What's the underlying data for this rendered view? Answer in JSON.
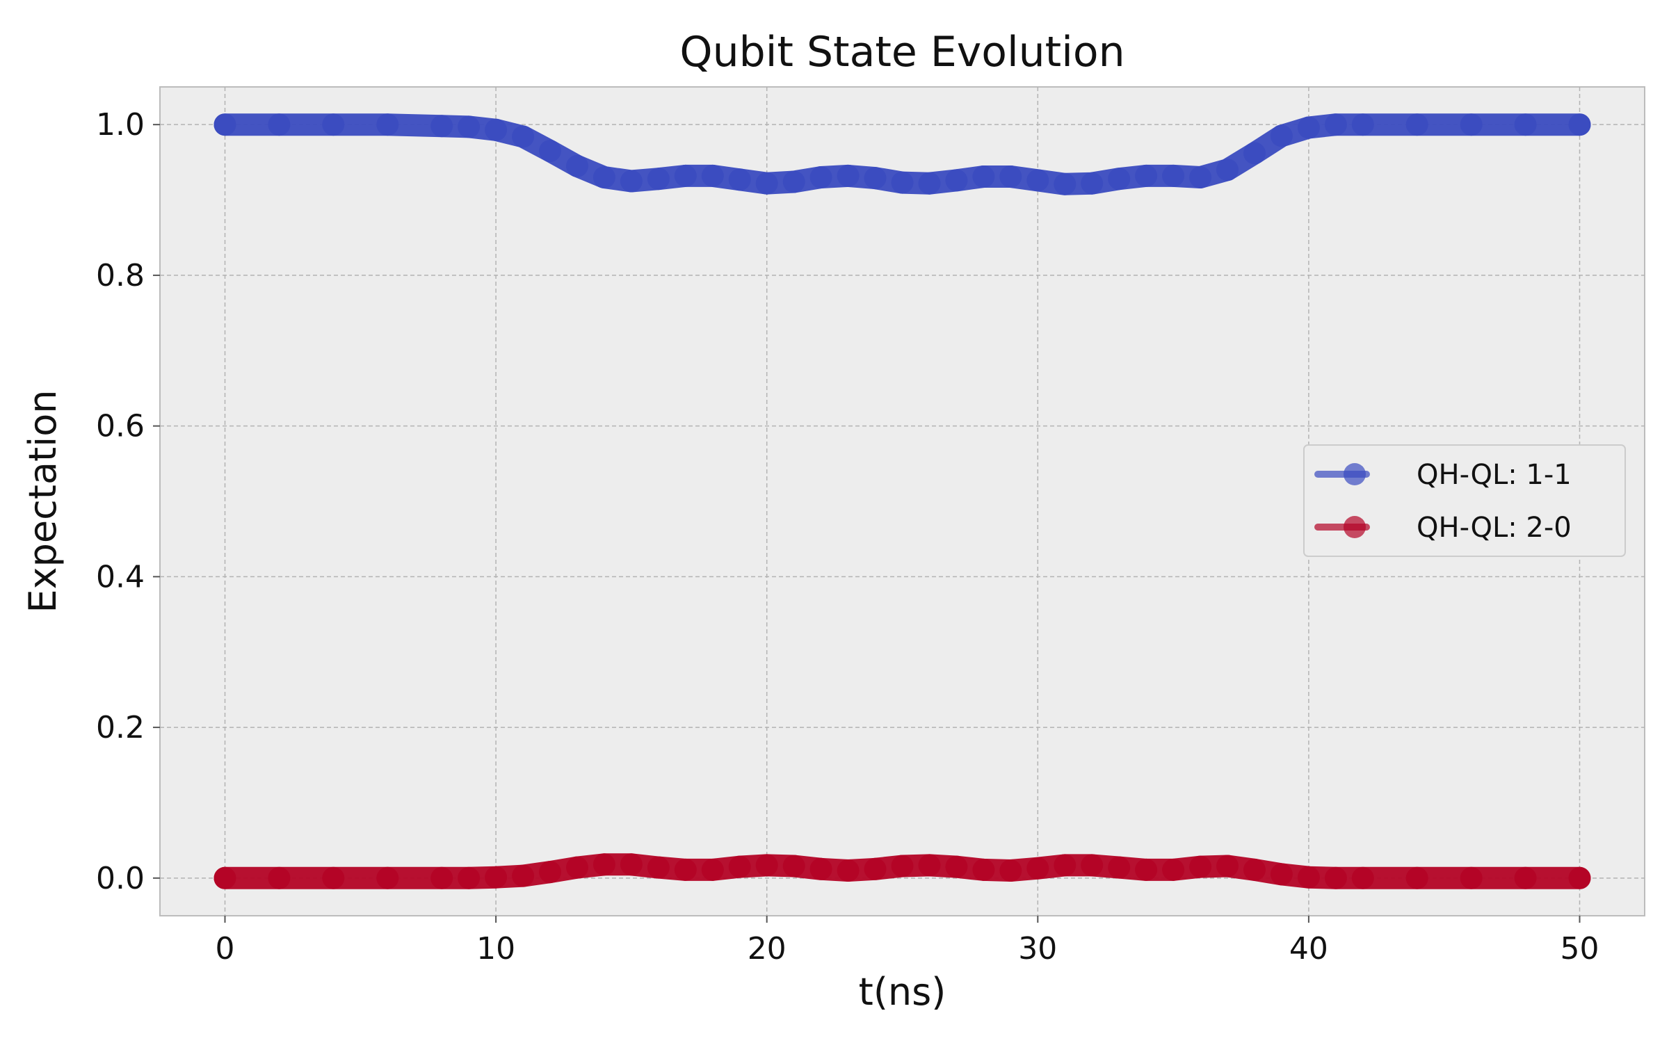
{
  "chart_data": {
    "type": "line",
    "title": "Qubit State Evolution",
    "xlabel": "t(ns)",
    "ylabel": "Expectation",
    "xlim": [
      -2.4,
      52.4
    ],
    "ylim": [
      -0.05,
      1.05
    ],
    "xticks": [
      0,
      10,
      20,
      30,
      40,
      50
    ],
    "yticks": [
      0.0,
      0.2,
      0.4,
      0.6,
      0.8,
      1.0
    ],
    "xtick_labels": [
      "0",
      "10",
      "20",
      "30",
      "40",
      "50"
    ],
    "ytick_labels": [
      "0.0",
      "0.2",
      "0.4",
      "0.6",
      "0.8",
      "1.0"
    ],
    "grid": true,
    "legend_position": "center-right",
    "series": [
      {
        "name": "QH-QL: 1-1",
        "color": "#3b4cc0",
        "x": [
          0,
          2,
          4,
          6,
          8,
          9,
          10,
          11,
          12,
          13,
          14,
          15,
          16,
          17,
          18,
          19,
          20,
          21,
          22,
          23,
          24,
          25,
          26,
          27,
          28,
          29,
          30,
          31,
          32,
          33,
          34,
          35,
          36,
          37,
          38,
          39,
          40,
          41,
          42,
          44,
          46,
          48,
          50
        ],
        "y": [
          1.0,
          1.0,
          1.0,
          1.0,
          0.998,
          0.997,
          0.993,
          0.984,
          0.965,
          0.945,
          0.93,
          0.925,
          0.928,
          0.932,
          0.932,
          0.927,
          0.922,
          0.924,
          0.93,
          0.932,
          0.929,
          0.923,
          0.922,
          0.926,
          0.931,
          0.931,
          0.926,
          0.921,
          0.922,
          0.928,
          0.932,
          0.932,
          0.93,
          0.94,
          0.962,
          0.985,
          0.996,
          1.0,
          1.0,
          1.0,
          1.0,
          1.0,
          1.0
        ]
      },
      {
        "name": "QH-QL: 2-0",
        "color": "#b40426",
        "x": [
          0,
          2,
          4,
          6,
          8,
          9,
          10,
          11,
          12,
          13,
          14,
          15,
          16,
          17,
          18,
          19,
          20,
          21,
          22,
          23,
          24,
          25,
          26,
          27,
          28,
          29,
          30,
          31,
          32,
          33,
          34,
          35,
          36,
          37,
          38,
          39,
          40,
          41,
          42,
          44,
          46,
          48,
          50
        ],
        "y": [
          0.0,
          0.0,
          0.0,
          0.0,
          0.0,
          0.0,
          0.001,
          0.003,
          0.008,
          0.014,
          0.018,
          0.018,
          0.014,
          0.011,
          0.011,
          0.015,
          0.017,
          0.016,
          0.012,
          0.01,
          0.012,
          0.016,
          0.017,
          0.015,
          0.011,
          0.01,
          0.013,
          0.017,
          0.017,
          0.014,
          0.011,
          0.011,
          0.015,
          0.016,
          0.011,
          0.005,
          0.001,
          0.0,
          0.0,
          0.0,
          0.0,
          0.0,
          0.0
        ]
      }
    ]
  }
}
